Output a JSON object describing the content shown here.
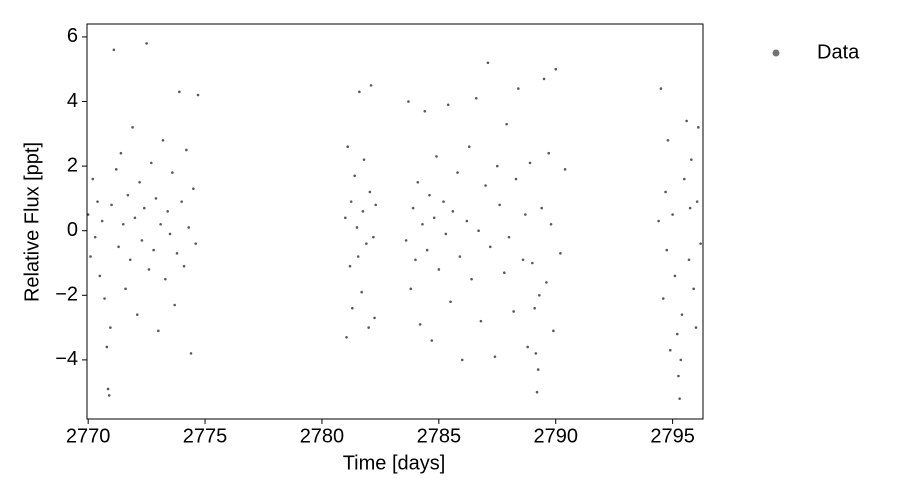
{
  "chart_data": {
    "type": "scatter",
    "xlabel": "Time [days]",
    "ylabel": "Relative Flux [ppt]",
    "xlim": [
      2769.95,
      2796.3
    ],
    "ylim": [
      -5.83,
      6.4
    ],
    "xticks": [
      2770,
      2775,
      2780,
      2785,
      2790,
      2795
    ],
    "yticks": [
      {
        "value": -4,
        "label": "−4"
      },
      {
        "value": -2,
        "label": "−2"
      },
      0,
      2,
      4,
      6
    ],
    "grid": false,
    "legend": "outside upper right",
    "series": [
      {
        "name": "Data",
        "color": "#000000",
        "x": [
          2770.0,
          2770.1,
          2770.2,
          2770.3,
          2770.4,
          2770.5,
          2770.6,
          2770.7,
          2770.8,
          2770.85,
          2770.9,
          2770.95,
          2771.0,
          2771.1,
          2771.2,
          2771.3,
          2771.4,
          2771.5,
          2771.6,
          2771.7,
          2771.8,
          2771.9,
          2772.0,
          2772.1,
          2772.2,
          2772.3,
          2772.4,
          2772.5,
          2772.6,
          2772.7,
          2772.8,
          2772.9,
          2773.0,
          2773.1,
          2773.2,
          2773.3,
          2773.4,
          2773.5,
          2773.6,
          2773.7,
          2773.8,
          2773.9,
          2774.0,
          2774.1,
          2774.2,
          2774.3,
          2774.4,
          2774.5,
          2774.6,
          2774.7,
          2781.0,
          2781.05,
          2781.1,
          2781.2,
          2781.25,
          2781.3,
          2781.4,
          2781.5,
          2781.55,
          2781.6,
          2781.7,
          2781.75,
          2781.8,
          2781.9,
          2782.0,
          2782.05,
          2782.1,
          2782.2,
          2782.25,
          2782.3,
          2783.6,
          2783.7,
          2783.8,
          2783.9,
          2784.0,
          2784.1,
          2784.2,
          2784.3,
          2784.4,
          2784.5,
          2784.6,
          2784.7,
          2784.8,
          2784.9,
          2785.0,
          2785.2,
          2785.3,
          2785.4,
          2785.5,
          2785.6,
          2785.8,
          2785.9,
          2786.0,
          2786.2,
          2786.3,
          2786.4,
          2786.6,
          2786.7,
          2786.8,
          2787.0,
          2787.1,
          2787.2,
          2787.4,
          2787.5,
          2787.6,
          2787.8,
          2787.9,
          2788.0,
          2788.2,
          2788.3,
          2788.4,
          2788.6,
          2788.7,
          2788.8,
          2788.9,
          2789.0,
          2789.1,
          2789.15,
          2789.2,
          2789.25,
          2789.3,
          2789.4,
          2789.5,
          2789.6,
          2789.7,
          2789.8,
          2789.9,
          2790.0,
          2790.2,
          2790.4,
          2794.4,
          2794.5,
          2794.6,
          2794.7,
          2794.75,
          2794.8,
          2794.9,
          2795.0,
          2795.1,
          2795.2,
          2795.25,
          2795.3,
          2795.35,
          2795.4,
          2795.5,
          2795.6,
          2795.7,
          2795.75,
          2795.8,
          2795.9,
          2796.0,
          2796.05,
          2796.1,
          2796.2
        ],
        "values": [
          0.5,
          -0.8,
          1.6,
          -0.2,
          0.9,
          -1.4,
          0.3,
          -2.1,
          -3.6,
          -4.9,
          -5.1,
          -3.0,
          0.8,
          5.6,
          1.9,
          -0.5,
          2.4,
          0.2,
          -1.8,
          1.1,
          -0.9,
          3.2,
          0.4,
          -2.6,
          1.5,
          -0.3,
          0.7,
          5.8,
          -1.2,
          2.1,
          -0.6,
          1.0,
          -3.1,
          0.2,
          2.8,
          -1.5,
          0.6,
          -0.1,
          1.8,
          -2.3,
          -0.7,
          4.3,
          0.9,
          -1.1,
          2.5,
          0.1,
          -3.8,
          1.3,
          -0.4,
          4.2,
          0.4,
          -3.3,
          2.6,
          -1.1,
          0.9,
          -2.4,
          1.7,
          0.1,
          -0.8,
          4.3,
          -1.9,
          0.6,
          2.2,
          -0.4,
          -3.0,
          1.2,
          4.5,
          -0.2,
          -2.7,
          0.8,
          -0.3,
          4.0,
          -1.8,
          0.7,
          -0.9,
          1.5,
          -2.9,
          0.2,
          3.7,
          -0.6,
          1.1,
          -3.4,
          0.4,
          2.3,
          -1.2,
          0.9,
          -0.1,
          3.9,
          -2.2,
          0.6,
          1.8,
          -0.8,
          -4.0,
          0.3,
          2.6,
          -1.5,
          4.1,
          0.0,
          -2.8,
          1.4,
          5.2,
          -0.5,
          -3.9,
          2.0,
          0.8,
          -1.3,
          3.3,
          -0.2,
          -2.5,
          1.6,
          4.4,
          -0.9,
          0.5,
          -3.6,
          2.1,
          -1.0,
          -2.4,
          -3.8,
          -5.0,
          -4.3,
          -2.0,
          0.7,
          4.7,
          -1.6,
          2.4,
          0.2,
          -3.1,
          5.0,
          -0.7,
          1.9,
          0.3,
          4.4,
          -2.1,
          1.2,
          -0.6,
          2.8,
          -3.7,
          0.5,
          -1.4,
          -3.2,
          -4.5,
          -5.2,
          -4.0,
          -2.6,
          1.6,
          3.4,
          -0.9,
          0.7,
          2.2,
          -1.8,
          -3.0,
          0.9,
          3.2,
          -0.4
        ]
      }
    ]
  }
}
